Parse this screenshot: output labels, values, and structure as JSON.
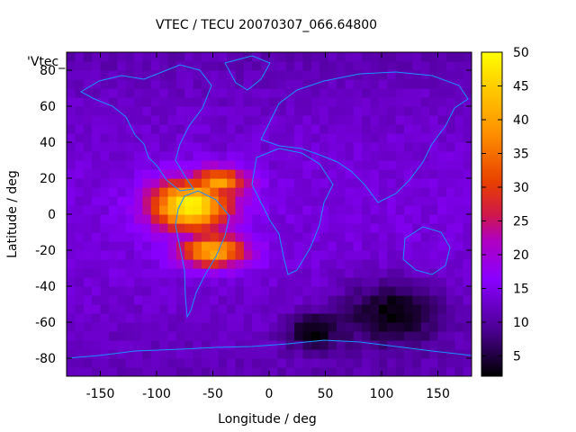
{
  "chart_data": {
    "type": "heatmap",
    "title": "VTEC / TECU 20070307_066.64800",
    "xlabel": "Longitude / deg",
    "ylabel": "Latitude / deg",
    "series_label": "'Vtec_",
    "xlim": [
      -180,
      180
    ],
    "ylim": [
      -90,
      90
    ],
    "xticks": [
      -150,
      -100,
      -50,
      0,
      50,
      100,
      150
    ],
    "yticks": [
      -80,
      -60,
      -40,
      -20,
      0,
      20,
      40,
      60,
      80
    ],
    "colorbar": {
      "min": 2,
      "max": 50,
      "ticks": [
        5,
        10,
        15,
        20,
        25,
        30,
        35,
        40,
        45,
        50
      ],
      "palette": [
        "#000000",
        "#5000a0",
        "#8a00ff",
        "#c01880",
        "#e03010",
        "#ff7000",
        "#ffc000",
        "#ffff00"
      ]
    },
    "grid": {
      "lon_step": 7.5,
      "lat_step": 5
    },
    "features": [
      {
        "name": "equatorial-anomaly",
        "lon": -70,
        "lat": 5,
        "peak": 50,
        "width_lon": 35,
        "width_lat": 14
      },
      {
        "name": "anomaly-north-crest",
        "lon": -45,
        "lat": 18,
        "peak": 40,
        "width_lon": 25,
        "width_lat": 8
      },
      {
        "name": "anomaly-south-crest",
        "lon": -50,
        "lat": -20,
        "peak": 42,
        "width_lon": 30,
        "width_lat": 9
      },
      {
        "name": "dark-south-pacific",
        "lon": 110,
        "lat": -55,
        "peak": 2,
        "width_lon": 45,
        "width_lat": 18
      },
      {
        "name": "dark-south-atlantic",
        "lon": 40,
        "lat": -65,
        "peak": 2,
        "width_lon": 25,
        "width_lat": 10
      }
    ]
  }
}
